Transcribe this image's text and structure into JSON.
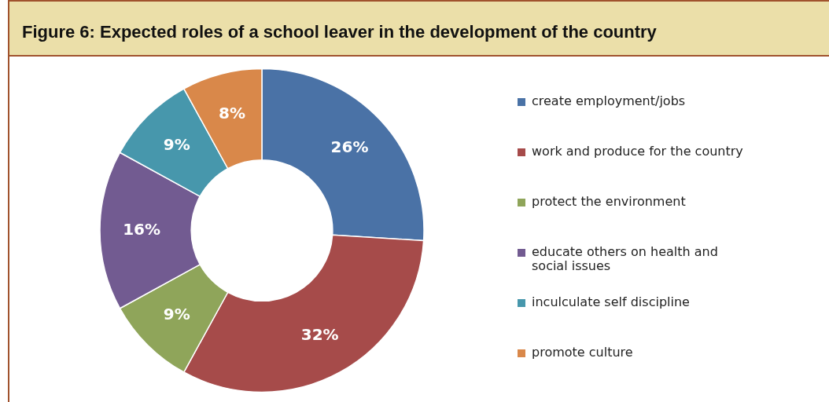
{
  "chart_data": {
    "type": "donut",
    "title": "Figure 6: Expected roles of a school leaver in the development of the country",
    "categories": [
      "create employment/jobs",
      "work and produce for the country",
      "protect the environment",
      "educate others on health and social issues",
      "inculculate self discipline",
      "promote culture"
    ],
    "values": [
      26,
      32,
      9,
      16,
      9,
      8
    ],
    "value_labels": [
      "26%",
      "32%",
      "9%",
      "16%",
      "9%",
      "8%"
    ],
    "colors": [
      "#4a72a6",
      "#a64b4a",
      "#8fa55a",
      "#725b91",
      "#4797ac",
      "#d9884a"
    ],
    "legend": "right"
  }
}
